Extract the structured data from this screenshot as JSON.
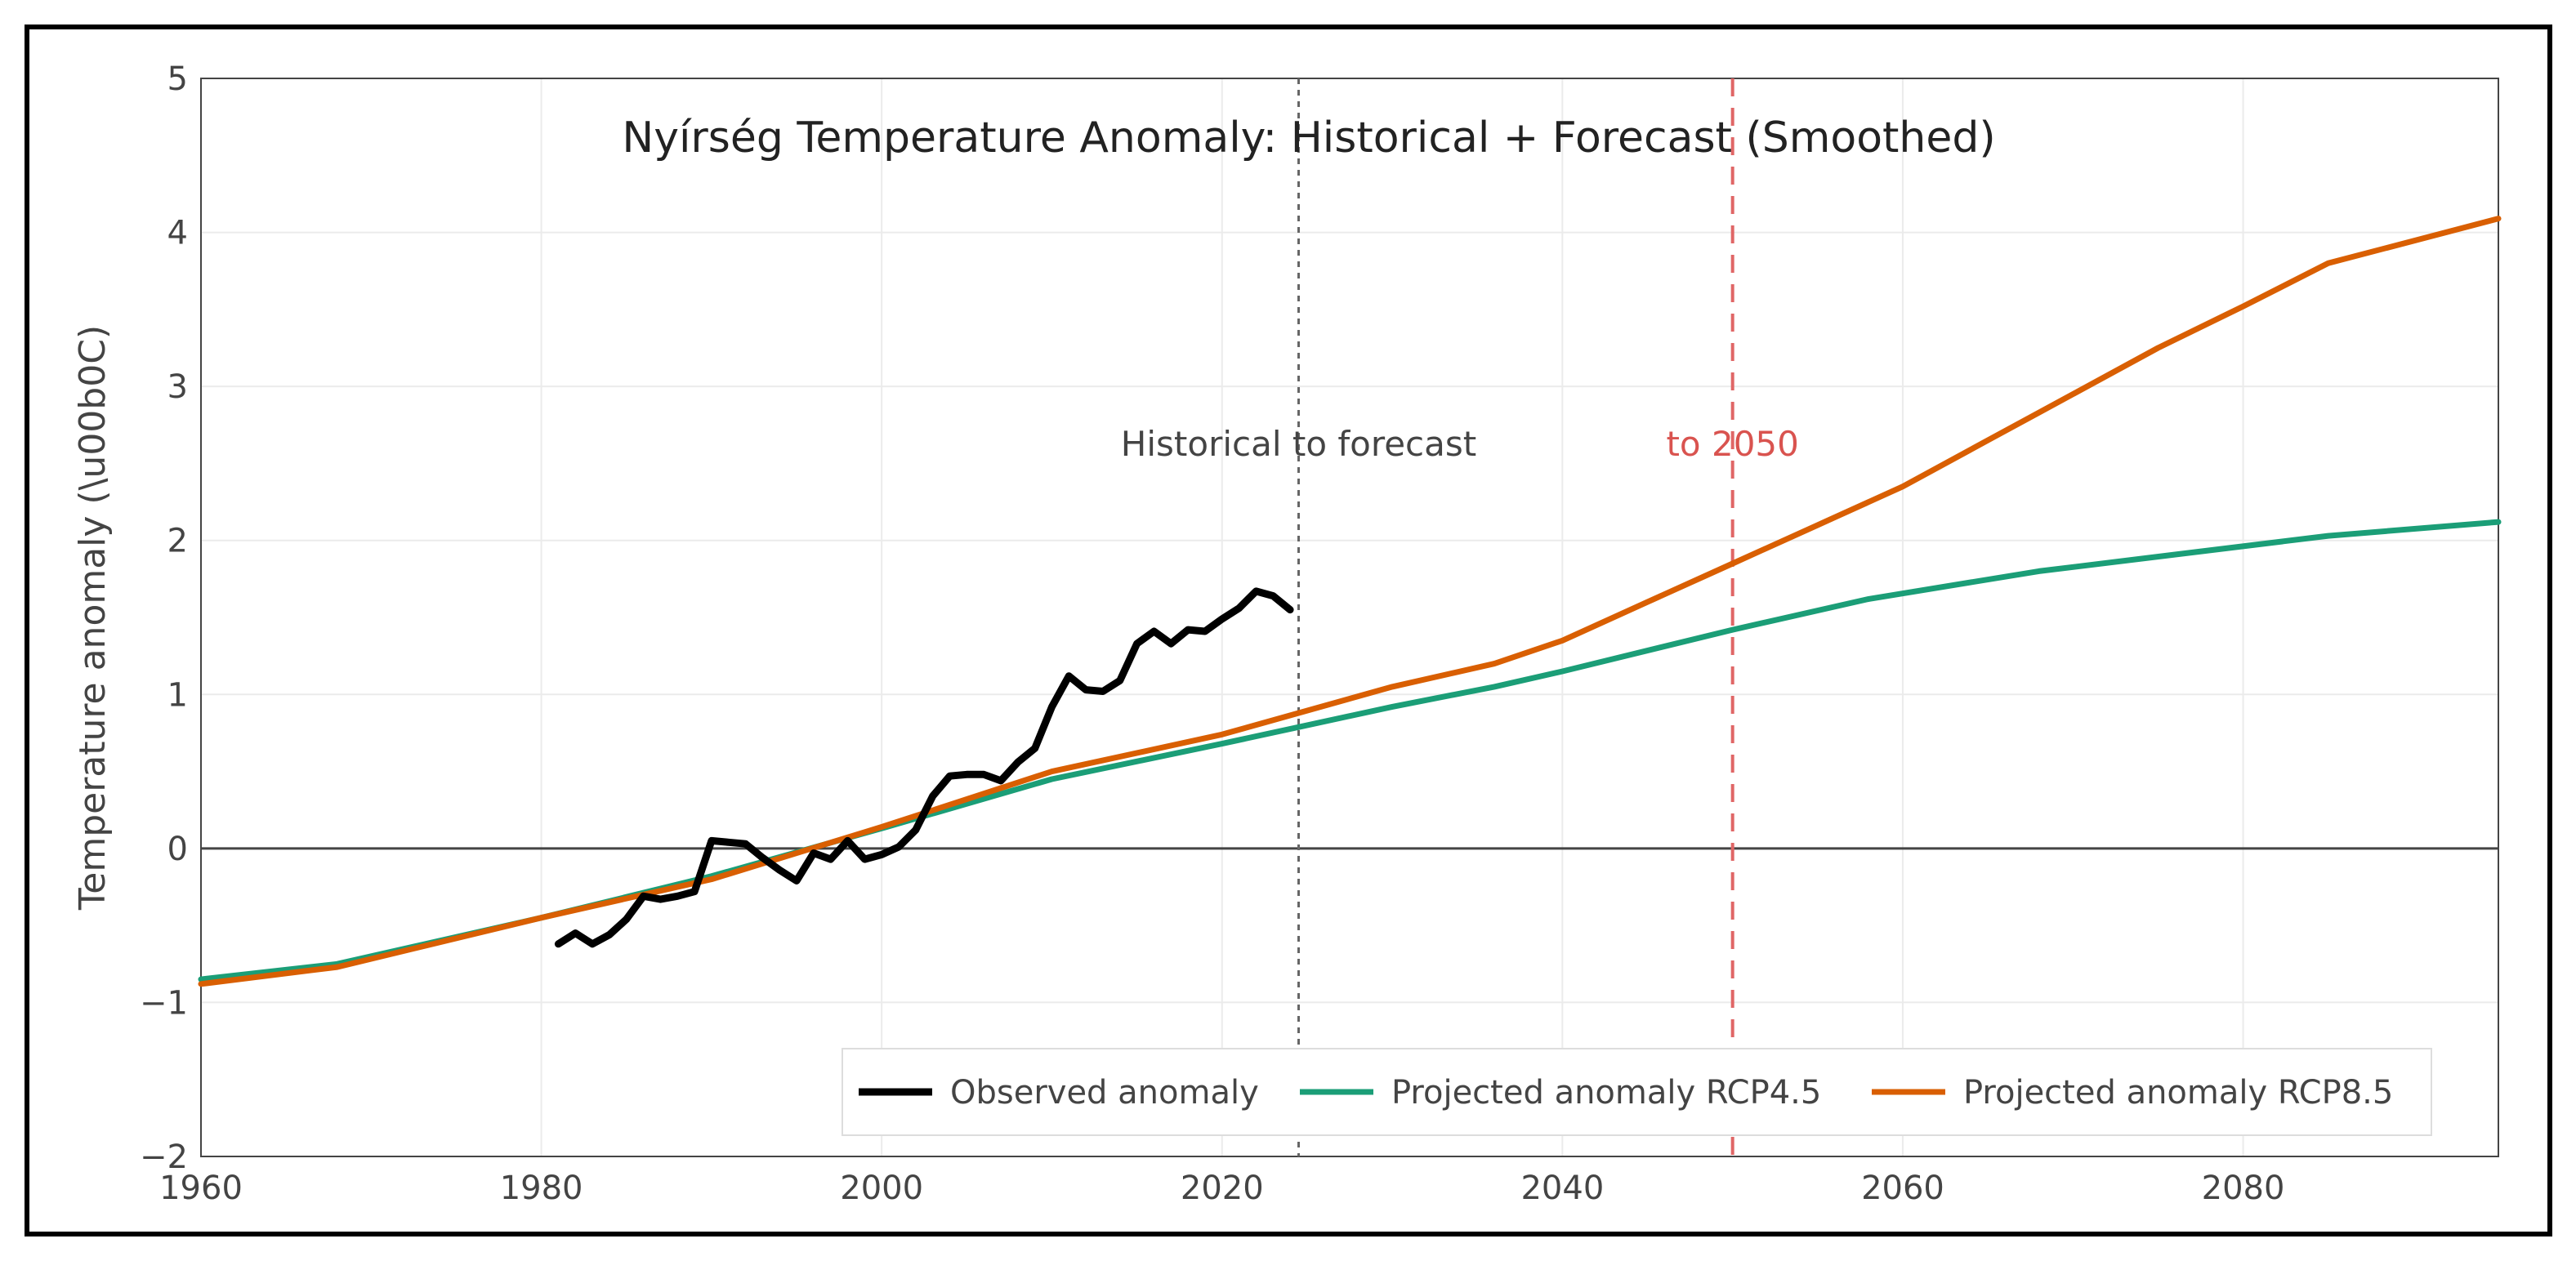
{
  "chart_data": {
    "type": "line",
    "title": "Nyírség Temperature Anomaly: Historical + Forecast (Smoothed)",
    "xlabel": "",
    "ylabel": "Temperature anomaly (\\u00b0C)",
    "xlim": [
      1960,
      2095
    ],
    "ylim": [
      -2,
      5
    ],
    "x_ticks": [
      1960,
      1980,
      2000,
      2020,
      2040,
      2060,
      2080
    ],
    "y_ticks": [
      -2,
      -1,
      0,
      1,
      2,
      3,
      4,
      5
    ],
    "grid": true,
    "legend_position": "bottom-right",
    "series": [
      {
        "name": "Observed anomaly",
        "color": "#000000",
        "x": [
          1981,
          1982,
          1983,
          1984,
          1985,
          1986,
          1987,
          1988,
          1989,
          1990,
          1991,
          1992,
          1993,
          1994,
          1995,
          1996,
          1997,
          1998,
          1999,
          2000,
          2001,
          2002,
          2003,
          2004,
          2005,
          2006,
          2007,
          2008,
          2009,
          2010,
          2011,
          2012,
          2013,
          2014,
          2015,
          2016,
          2017,
          2018,
          2019,
          2020,
          2021,
          2022,
          2023,
          2024
        ],
        "y": [
          -0.62,
          -0.55,
          -0.62,
          -0.56,
          -0.46,
          -0.31,
          -0.33,
          -0.31,
          -0.28,
          0.05,
          0.04,
          0.03,
          -0.06,
          -0.14,
          -0.21,
          -0.03,
          -0.07,
          0.05,
          -0.07,
          -0.04,
          0.01,
          0.12,
          0.34,
          0.47,
          0.48,
          0.48,
          0.44,
          0.56,
          0.65,
          0.92,
          1.12,
          1.03,
          1.02,
          1.09,
          1.33,
          1.41,
          1.33,
          1.42,
          1.41,
          1.49,
          1.56,
          1.67,
          1.64,
          1.55
        ]
      },
      {
        "name": "Projected anomaly RCP4.5",
        "color": "#1b9e77",
        "x": [
          1960,
          1968,
          1980,
          1990,
          2000,
          2010,
          2020,
          2030,
          2036,
          2040,
          2050,
          2058,
          2068,
          2085,
          2095
        ],
        "y": [
          -0.85,
          -0.75,
          -0.45,
          -0.18,
          0.13,
          0.45,
          0.68,
          0.92,
          1.05,
          1.15,
          1.42,
          1.62,
          1.8,
          2.03,
          2.12
        ]
      },
      {
        "name": "Projected anomaly RCP8.5",
        "color": "#d95f02",
        "x": [
          1960,
          1968,
          1980,
          1990,
          2000,
          2010,
          2020,
          2030,
          2036,
          2040,
          2045,
          2050,
          2055,
          2060,
          2065,
          2070,
          2075,
          2080,
          2085,
          2095
        ],
        "y": [
          -0.88,
          -0.77,
          -0.45,
          -0.2,
          0.14,
          0.5,
          0.74,
          1.05,
          1.2,
          1.35,
          1.6,
          1.85,
          2.1,
          2.35,
          2.65,
          2.95,
          3.25,
          3.52,
          3.8,
          4.09
        ]
      }
    ],
    "annotations": [
      {
        "text": "Historical to forecast",
        "x": 2024.5,
        "color": "#444444",
        "line_style": "dotted",
        "line_color": "#666666"
      },
      {
        "text": "to 2050",
        "x": 2050,
        "color": "#d9534f",
        "line_style": "dashed",
        "line_color": "#e06666"
      }
    ]
  }
}
